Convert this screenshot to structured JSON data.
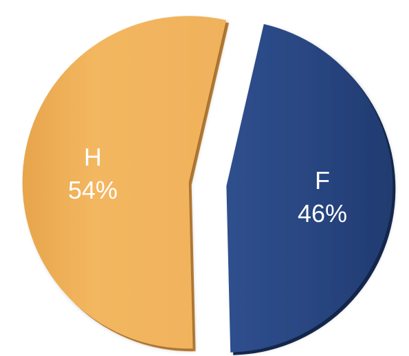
{
  "chart_data": {
    "type": "pie",
    "title": "",
    "slices": [
      {
        "label": "H",
        "value": 54,
        "value_label": "54%",
        "color": "#f0b05a"
      },
      {
        "label": "F",
        "value": 46,
        "value_label": "46%",
        "color": "#27457f"
      }
    ],
    "legend": "none",
    "style": "exploded-3d"
  }
}
